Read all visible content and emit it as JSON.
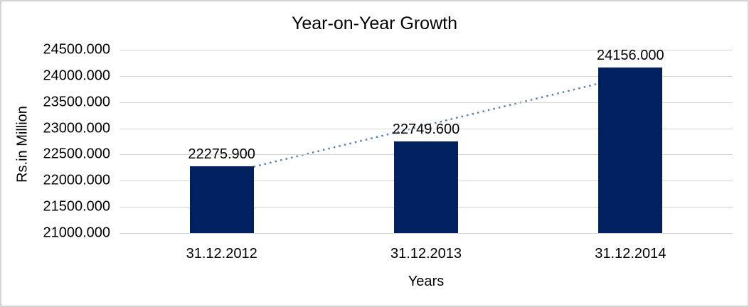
{
  "frame": {
    "background": "#ffffff",
    "border_color": "#d3d3d3"
  },
  "chart_data": {
    "type": "bar",
    "title": "Year-on-Year Growth",
    "xlabel": "Years",
    "ylabel": "Rs.in Million",
    "categories": [
      "31.12.2012",
      "31.12.2013",
      "31.12.2014"
    ],
    "series": [
      {
        "name": "Rs.in Million",
        "values": [
          22275.9,
          22749.6,
          24156.0
        ],
        "data_labels": [
          "22275.900",
          "22749.600",
          "24156.000"
        ],
        "color": "#002060"
      }
    ],
    "ylim": [
      21000,
      24500
    ],
    "ytick_step": 500,
    "yticks": [
      21000,
      21500,
      22000,
      22500,
      23000,
      23500,
      24000,
      24500
    ],
    "ytick_labels": [
      "21000.000",
      "21500.000",
      "22000.000",
      "22500.000",
      "23000.000",
      "23500.000",
      "24000.000",
      "24500.000"
    ],
    "grid": "horizontal",
    "gridline_color": "#d3d3d3",
    "legend": "none",
    "trendline": {
      "type": "linear",
      "style": "dotted",
      "color": "#4f81bd",
      "start_value": 22120,
      "end_value": 24000
    }
  }
}
